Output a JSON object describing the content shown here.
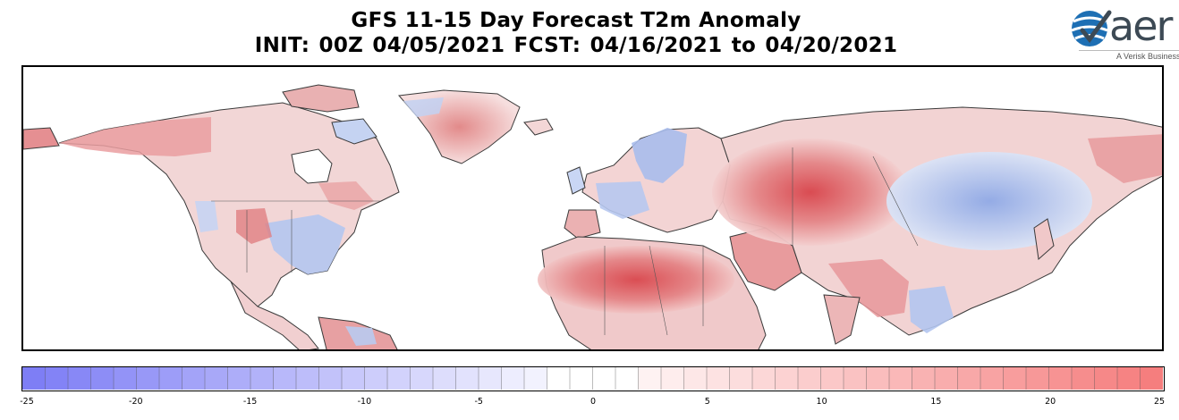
{
  "title": {
    "line1": "GFS 11-15 Day Forecast T2m Anomaly",
    "line2": "INIT: 00Z 04/05/2021     FCST: 04/16/2021 to 04/20/2021"
  },
  "logo": {
    "word": "aer",
    "tagline": "A Verisk Business",
    "icon": "aer-globe-check-icon"
  },
  "map": {
    "projection": "cylindrical",
    "region": "Northern Hemisphere (North America, Europe, Africa, Asia)",
    "colors": {
      "strong_warm": "#d9474d",
      "warm": "#e79a9a",
      "light_warm": "#f3d0d0",
      "neutral": "#ffffff",
      "light_cool": "#d6e1f5",
      "cool": "#9fb7ea",
      "land_outline": "#3a3a3a"
    }
  },
  "colorbar": {
    "min": -25,
    "max": 25,
    "step": 1,
    "tick_labels": [
      "-25",
      "-20",
      "-15",
      "-10",
      "-5",
      "0",
      "5",
      "10",
      "15",
      "20",
      "25"
    ],
    "cold_end": "#7b7bf5",
    "neutral_band": [
      -2,
      2
    ],
    "warm_end": "#f57b7b"
  }
}
